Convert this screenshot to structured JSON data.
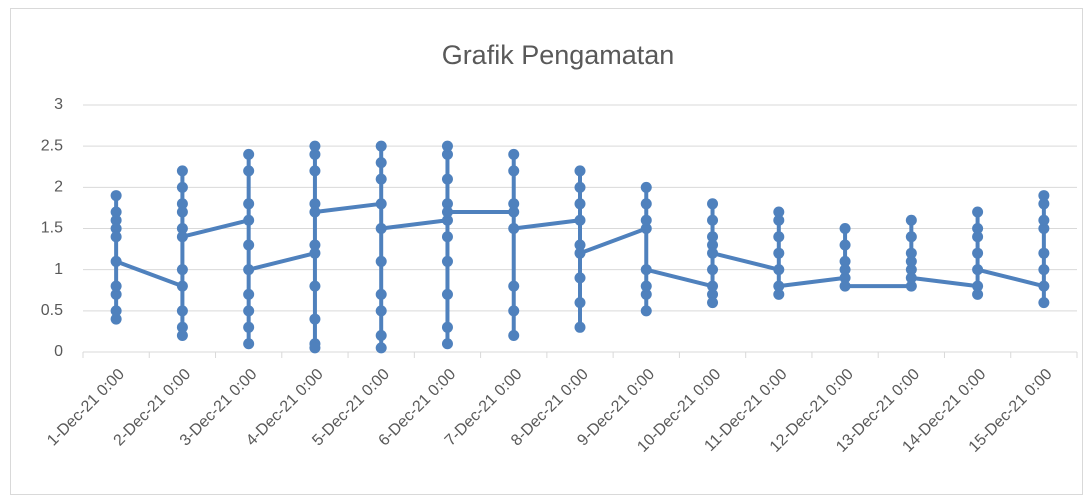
{
  "chart_data": {
    "type": "line",
    "title": "Grafik Pengamatan",
    "categories": [
      "1-Dec-21 0:00",
      "2-Dec-21 0:00",
      "3-Dec-21 0:00",
      "4-Dec-21 0:00",
      "5-Dec-21 0:00",
      "6-Dec-21 0:00",
      "7-Dec-21 0:00",
      "8-Dec-21 0:00",
      "9-Dec-21 0:00",
      "10-Dec-21 0:00",
      "11-Dec-21 0:00",
      "12-Dec-21 0:00",
      "13-Dec-21 0:00",
      "14-Dec-21 0:00",
      "15-Dec-21 0:00"
    ],
    "ylim": [
      0,
      3
    ],
    "yticks": [
      0,
      0.5,
      1,
      1.5,
      2,
      2.5,
      3
    ],
    "grid": true,
    "series": [
      {
        "color": "#4f81bd",
        "x": [
          "1-Dec-21 0:00",
          "1-Dec-21 0:00",
          "1-Dec-21 0:00",
          "1-Dec-21 0:00",
          "1-Dec-21 0:00",
          "1-Dec-21 0:00",
          "1-Dec-21 0:00",
          "1-Dec-21 0:00",
          "1-Dec-21 0:00",
          "1-Dec-21 0:00",
          "2-Dec-21 0:00",
          "2-Dec-21 0:00",
          "2-Dec-21 0:00",
          "2-Dec-21 0:00",
          "2-Dec-21 0:00",
          "2-Dec-21 0:00",
          "2-Dec-21 0:00",
          "2-Dec-21 0:00",
          "2-Dec-21 0:00",
          "2-Dec-21 0:00",
          "2-Dec-21 0:00",
          "3-Dec-21 0:00",
          "3-Dec-21 0:00",
          "3-Dec-21 0:00",
          "3-Dec-21 0:00",
          "3-Dec-21 0:00",
          "3-Dec-21 0:00",
          "3-Dec-21 0:00",
          "3-Dec-21 0:00",
          "3-Dec-21 0:00",
          "3-Dec-21 0:00",
          "4-Dec-21 0:00",
          "4-Dec-21 0:00",
          "4-Dec-21 0:00",
          "4-Dec-21 0:00",
          "4-Dec-21 0:00",
          "4-Dec-21 0:00",
          "4-Dec-21 0:00",
          "4-Dec-21 0:00",
          "4-Dec-21 0:00",
          "4-Dec-21 0:00",
          "4-Dec-21 0:00",
          "5-Dec-21 0:00",
          "5-Dec-21 0:00",
          "5-Dec-21 0:00",
          "5-Dec-21 0:00",
          "5-Dec-21 0:00",
          "5-Dec-21 0:00",
          "5-Dec-21 0:00",
          "5-Dec-21 0:00",
          "5-Dec-21 0:00",
          "5-Dec-21 0:00",
          "6-Dec-21 0:00",
          "6-Dec-21 0:00",
          "6-Dec-21 0:00",
          "6-Dec-21 0:00",
          "6-Dec-21 0:00",
          "6-Dec-21 0:00",
          "6-Dec-21 0:00",
          "6-Dec-21 0:00",
          "6-Dec-21 0:00",
          "6-Dec-21 0:00",
          "6-Dec-21 0:00",
          "7-Dec-21 0:00",
          "7-Dec-21 0:00",
          "7-Dec-21 0:00",
          "7-Dec-21 0:00",
          "7-Dec-21 0:00",
          "7-Dec-21 0:00",
          "7-Dec-21 0:00",
          "7-Dec-21 0:00",
          "8-Dec-21 0:00",
          "8-Dec-21 0:00",
          "8-Dec-21 0:00",
          "8-Dec-21 0:00",
          "8-Dec-21 0:00",
          "8-Dec-21 0:00",
          "8-Dec-21 0:00",
          "8-Dec-21 0:00",
          "8-Dec-21 0:00",
          "9-Dec-21 0:00",
          "9-Dec-21 0:00",
          "9-Dec-21 0:00",
          "9-Dec-21 0:00",
          "9-Dec-21 0:00",
          "9-Dec-21 0:00",
          "9-Dec-21 0:00",
          "9-Dec-21 0:00",
          "10-Dec-21 0:00",
          "10-Dec-21 0:00",
          "10-Dec-21 0:00",
          "10-Dec-21 0:00",
          "10-Dec-21 0:00",
          "10-Dec-21 0:00",
          "10-Dec-21 0:00",
          "10-Dec-21 0:00",
          "10-Dec-21 0:00",
          "11-Dec-21 0:00",
          "11-Dec-21 0:00",
          "11-Dec-21 0:00",
          "11-Dec-21 0:00",
          "11-Dec-21 0:00",
          "11-Dec-21 0:00",
          "11-Dec-21 0:00",
          "12-Dec-21 0:00",
          "12-Dec-21 0:00",
          "12-Dec-21 0:00",
          "12-Dec-21 0:00",
          "12-Dec-21 0:00",
          "12-Dec-21 0:00",
          "13-Dec-21 0:00",
          "13-Dec-21 0:00",
          "13-Dec-21 0:00",
          "13-Dec-21 0:00",
          "13-Dec-21 0:00",
          "13-Dec-21 0:00",
          "13-Dec-21 0:00",
          "14-Dec-21 0:00",
          "14-Dec-21 0:00",
          "14-Dec-21 0:00",
          "14-Dec-21 0:00",
          "14-Dec-21 0:00",
          "14-Dec-21 0:00",
          "14-Dec-21 0:00",
          "15-Dec-21 0:00",
          "15-Dec-21 0:00",
          "15-Dec-21 0:00",
          "15-Dec-21 0:00",
          "15-Dec-21 0:00",
          "15-Dec-21 0:00",
          "15-Dec-21 0:00",
          "15-Dec-21 0:00"
        ],
        "values": [
          1.9,
          1.7,
          1.6,
          1.5,
          1.4,
          0.4,
          0.5,
          0.7,
          0.8,
          1.1,
          0.8,
          0.5,
          0.3,
          0.2,
          1.0,
          1.7,
          1.8,
          2.0,
          2.2,
          1.5,
          1.4,
          1.6,
          1.8,
          2.2,
          2.4,
          0.1,
          0.3,
          0.5,
          0.7,
          1.3,
          1.0,
          1.2,
          0.8,
          0.4,
          0.1,
          0.05,
          1.3,
          2.2,
          2.4,
          2.5,
          1.8,
          1.7,
          1.8,
          2.1,
          2.3,
          2.5,
          0.05,
          0.2,
          0.5,
          0.7,
          1.1,
          1.5,
          1.6,
          1.1,
          0.7,
          0.3,
          0.1,
          1.4,
          2.1,
          2.4,
          2.5,
          1.8,
          1.7,
          1.7,
          1.8,
          2.2,
          2.4,
          0.2,
          0.5,
          0.8,
          1.5,
          1.6,
          1.8,
          2.0,
          2.2,
          0.3,
          0.6,
          0.9,
          1.3,
          1.2,
          1.5,
          1.6,
          1.8,
          2.0,
          0.5,
          0.7,
          0.8,
          1.0,
          0.8,
          0.7,
          0.6,
          1.0,
          1.4,
          1.6,
          1.8,
          1.3,
          1.2,
          1.0,
          1.2,
          1.4,
          1.6,
          1.7,
          0.7,
          0.8,
          0.9,
          1.1,
          1.3,
          1.5,
          1.0,
          0.8,
          0.8,
          1.0,
          1.2,
          1.4,
          1.6,
          1.1,
          0.9,
          0.8,
          0.7,
          1.2,
          1.4,
          1.5,
          1.7,
          1.0,
          0.8,
          0.6,
          1.0,
          1.2,
          1.5,
          1.6,
          1.8,
          1.9
        ]
      }
    ]
  }
}
